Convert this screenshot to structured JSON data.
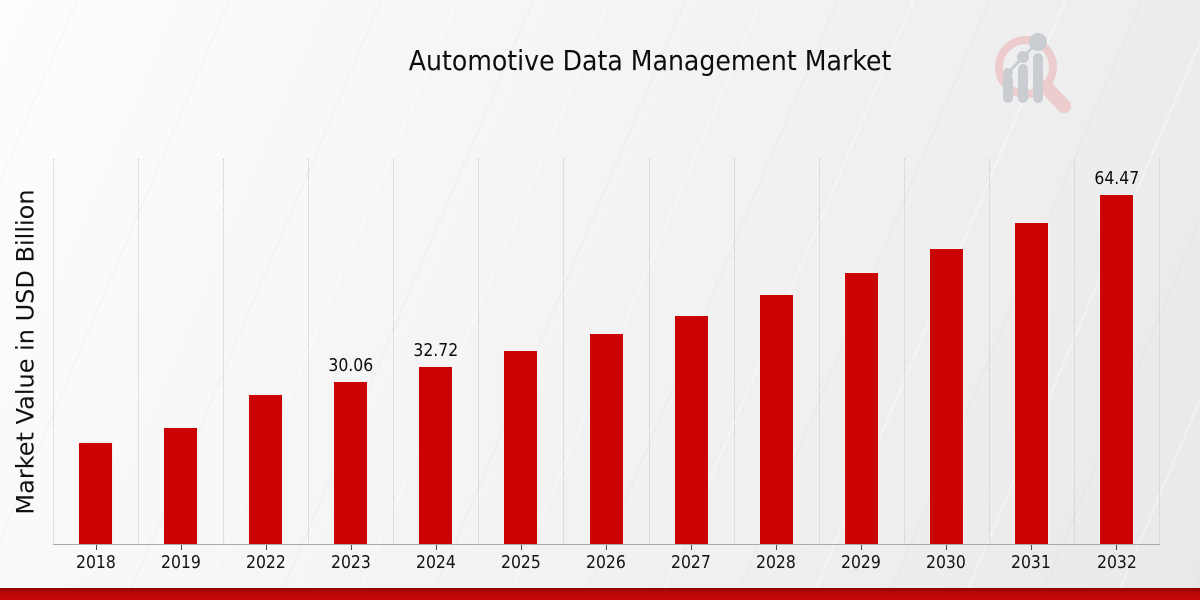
{
  "chart_data": {
    "type": "bar",
    "title": "Automotive Data Management Market",
    "ylabel": "Market Value in USD Billion",
    "xlabel": "",
    "categories": [
      "2018",
      "2019",
      "2022",
      "2023",
      "2024",
      "2025",
      "2026",
      "2027",
      "2028",
      "2029",
      "2030",
      "2031",
      "2032"
    ],
    "values": [
      18.7,
      21.5,
      27.6,
      30.06,
      32.72,
      35.6,
      38.8,
      42.2,
      45.9,
      50.0,
      54.4,
      59.2,
      64.47
    ],
    "data_labels": {
      "2023": "30.06",
      "2024": "32.72",
      "2032": "64.47"
    },
    "ylim": [
      0,
      71
    ],
    "grid": "vertical-dotted-category-separators",
    "legend": "none",
    "bar_color": "#cb0304",
    "accent_bar_color": "#c90707",
    "gridline_color": "#c7c7c8",
    "axis_line_color": "#a9a9aa",
    "label_color": "#0d0d0d"
  },
  "icons": {
    "watermark": "magnifier-growth-chart-logo",
    "watermark_ring_color": "#edccce",
    "watermark_bars_color": "#c9cdd2"
  }
}
